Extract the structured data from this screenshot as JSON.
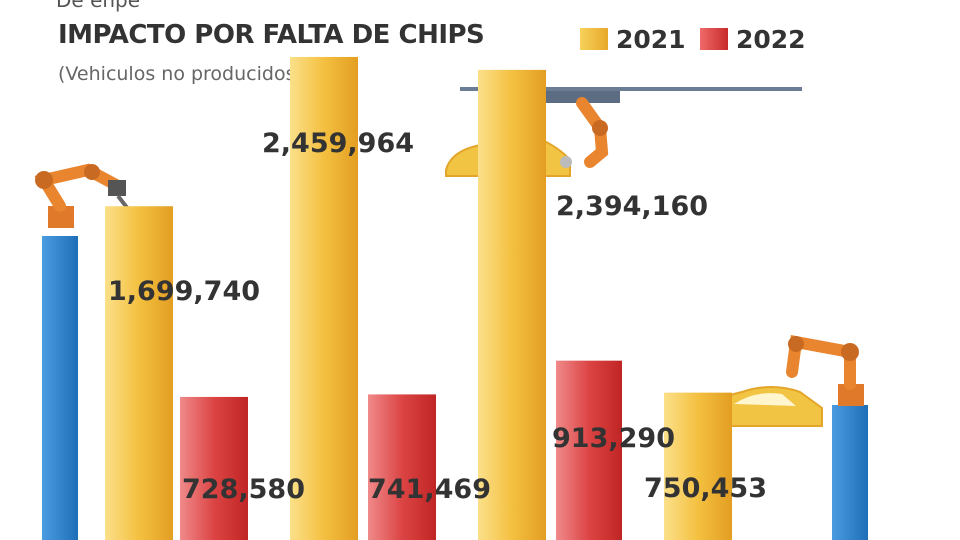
{
  "chart_data": {
    "type": "bar",
    "title": "IMPACTO POR FALTA DE CHIPS",
    "subtitle": "(Vehiculos no producidos)",
    "top_cut_text": "De enpe",
    "categories": [
      "",
      "",
      "",
      ""
    ],
    "series": [
      {
        "name": "2021",
        "color": "#f2b731",
        "values": [
          1699740,
          2459964,
          2394160,
          750453
        ]
      },
      {
        "name": "2022",
        "color": "#d63a3a",
        "values": [
          728580,
          741469,
          913290,
          null
        ]
      }
    ],
    "value_labels": [
      [
        "1,699,740",
        "2,459,964",
        "2,394,160",
        "750,453"
      ],
      [
        "728,580",
        "741,469",
        "913,290",
        ""
      ]
    ],
    "ylim": [
      0,
      2750000
    ],
    "legend": "top-right"
  }
}
